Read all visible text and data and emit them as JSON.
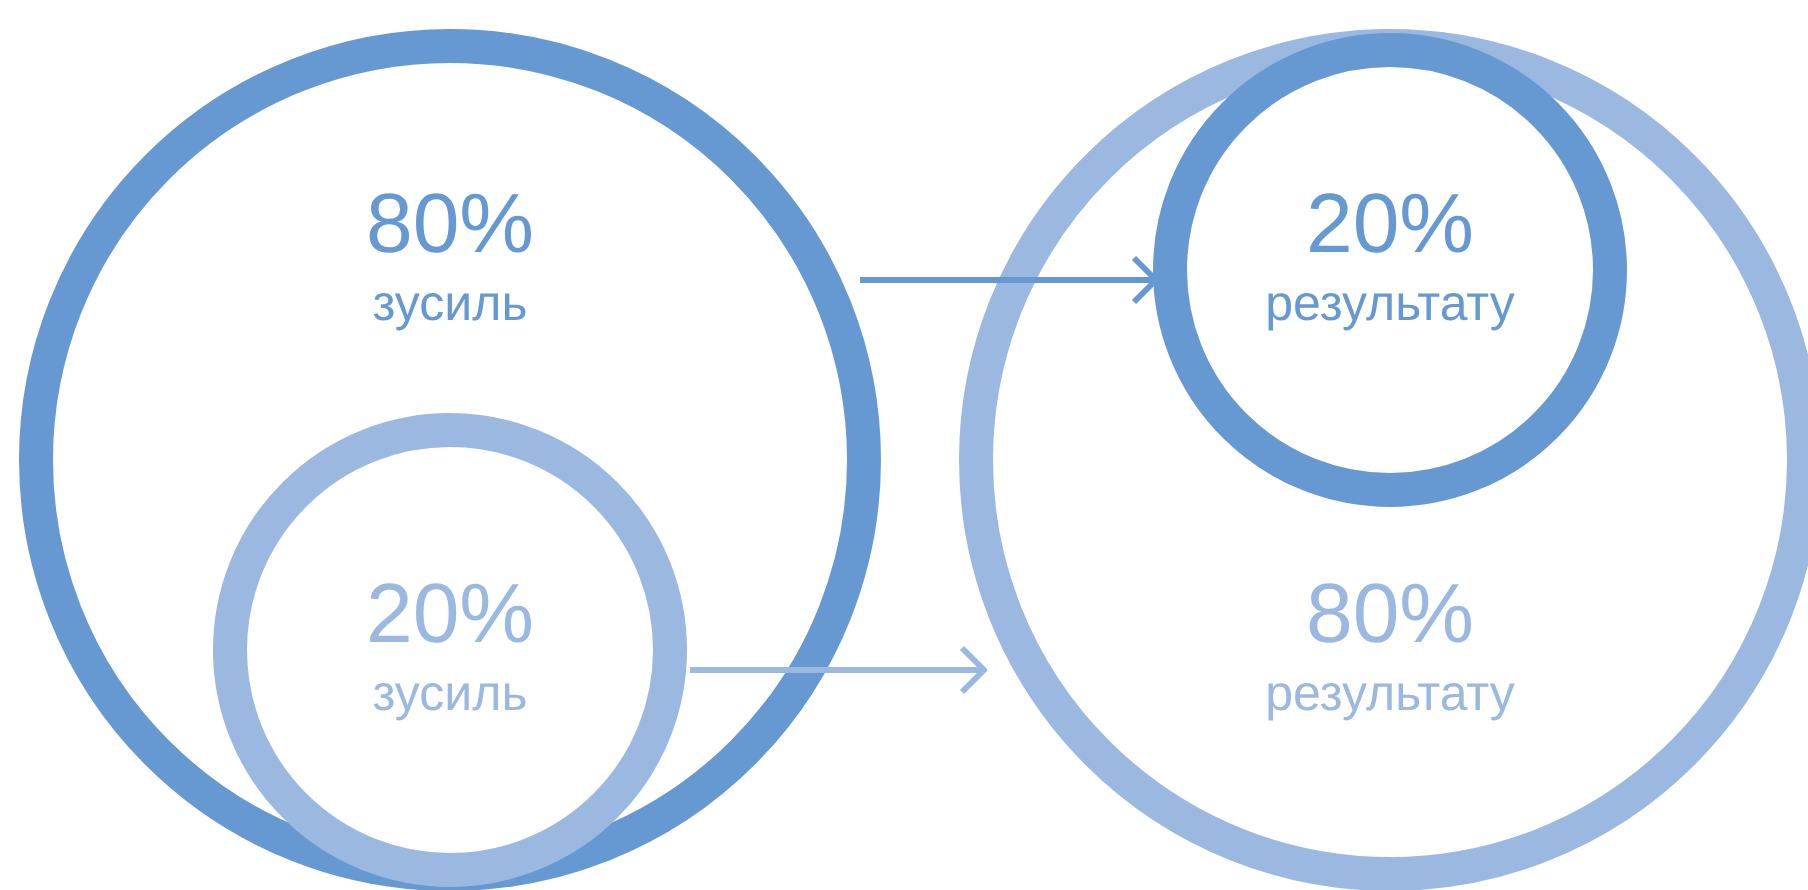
{
  "chart_data": {
    "type": "other",
    "categories": [
      "зусиль",
      "зусиль",
      "результату",
      "результату"
    ],
    "values": [
      80,
      20,
      20,
      80
    ],
    "value_labels": [
      "80%",
      "20%",
      "20%",
      "80%"
    ],
    "colors": [
      "#6699d1",
      "#9bb8e1",
      "#6699d1",
      "#9bb8e1"
    ]
  }
}
